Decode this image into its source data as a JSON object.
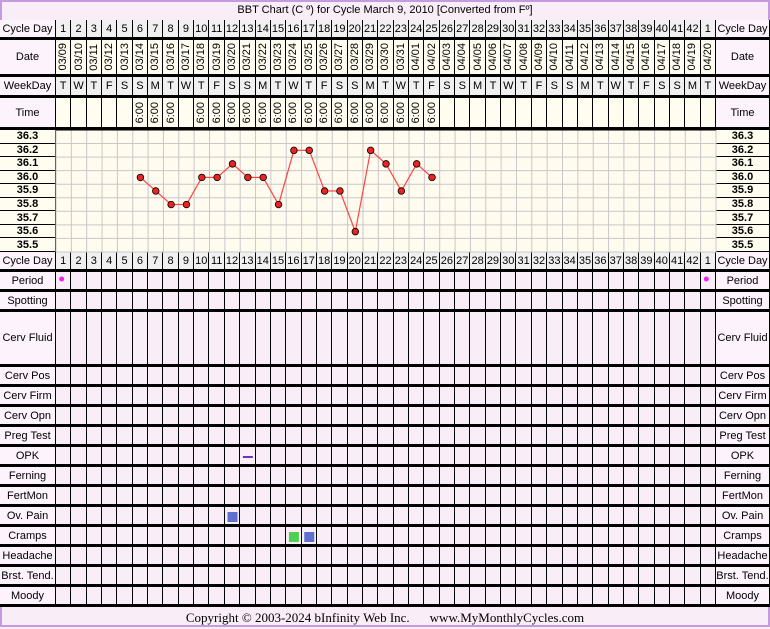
{
  "title": "BBT Chart (C º) for Cycle March 9, 2010  [Converted from Fº]",
  "labels": {
    "cycle_day": "Cycle Day",
    "date": "Date",
    "weekday": "WeekDay",
    "time": "Time"
  },
  "rows": [
    "Period",
    "Spotting",
    "Cerv Fluid",
    "Cerv Pos",
    "Cerv Firm",
    "Cerv Opn",
    "Preg Test",
    "OPK",
    "Ferning",
    "FertMon",
    "Ov. Pain",
    "Cramps",
    "Headache",
    "Brst. Tend.",
    "Moody"
  ],
  "footer": {
    "copyright": "Copyright © 2003-2024 bInfinity Web Inc.",
    "site": "www.MyMonthlyCycles.com"
  },
  "chart_data": {
    "type": "line",
    "title": "BBT Chart (C º) for Cycle March 9, 2010  [Converted from Fº]",
    "ylabel": "",
    "ylim": [
      35.5,
      36.3
    ],
    "yticks": [
      "36.3",
      "36.2",
      "36.1",
      "36.0",
      "35.9",
      "35.8",
      "35.7",
      "35.6",
      "35.5"
    ],
    "grid": true,
    "cycle_days": [
      "1",
      "2",
      "3",
      "4",
      "5",
      "6",
      "7",
      "8",
      "9",
      "10",
      "11",
      "12",
      "13",
      "14",
      "15",
      "16",
      "17",
      "18",
      "19",
      "20",
      "21",
      "22",
      "23",
      "24",
      "25",
      "26",
      "27",
      "28",
      "29",
      "30",
      "31",
      "32",
      "33",
      "34",
      "35",
      "36",
      "37",
      "38",
      "39",
      "40",
      "41",
      "42",
      "1"
    ],
    "dates": [
      "03/09",
      "03/10",
      "03/11",
      "03/12",
      "03/13",
      "03/14",
      "03/15",
      "03/16",
      "03/17",
      "03/18",
      "03/19",
      "03/20",
      "03/21",
      "03/22",
      "03/23",
      "03/24",
      "03/25",
      "03/26",
      "03/27",
      "03/28",
      "03/29",
      "03/30",
      "03/31",
      "04/01",
      "04/02",
      "04/03",
      "04/04",
      "04/05",
      "04/06",
      "04/07",
      "04/08",
      "04/09",
      "04/10",
      "04/11",
      "04/12",
      "04/13",
      "04/14",
      "04/15",
      "04/16",
      "04/17",
      "04/18",
      "04/19",
      "04/20"
    ],
    "weekdays": [
      "T",
      "W",
      "T",
      "F",
      "S",
      "S",
      "M",
      "T",
      "W",
      "T",
      "F",
      "S",
      "S",
      "M",
      "T",
      "W",
      "T",
      "F",
      "S",
      "S",
      "M",
      "T",
      "W",
      "T",
      "F",
      "S",
      "S",
      "M",
      "T",
      "W",
      "T",
      "F",
      "S",
      "S",
      "M",
      "T",
      "W",
      "T",
      "F",
      "S",
      "S",
      "M",
      "T"
    ],
    "times": [
      "",
      "",
      "",
      "",
      "",
      "6:00",
      "6:00",
      "6:00",
      "",
      "6:00",
      "6:00",
      "6:00",
      "6:00",
      "6:00",
      "6:00",
      "6:00",
      "6:00",
      "6:00",
      "6:00",
      "6:00",
      "6:00",
      "6:00",
      "6:00",
      "6:00",
      "6:00",
      "",
      "",
      "",
      "",
      "",
      "",
      "",
      "",
      "",
      "",
      "",
      "",
      "",
      "",
      "",
      "",
      "",
      ""
    ],
    "temps": [
      null,
      null,
      null,
      null,
      null,
      36.0,
      35.9,
      35.8,
      35.8,
      36.0,
      36.0,
      36.1,
      36.0,
      36.0,
      35.8,
      36.2,
      36.2,
      35.9,
      35.9,
      35.6,
      36.2,
      36.1,
      35.9,
      36.1,
      36.0,
      null,
      null,
      null,
      null,
      null,
      null,
      null,
      null,
      null,
      null,
      null,
      null,
      null,
      null,
      null,
      null,
      null,
      null
    ],
    "line_color": "#ff4444",
    "point_color": "#ee2222",
    "markers": [
      {
        "row": "Period",
        "day_index": 0,
        "type": "dot",
        "color": "#ee22ee"
      },
      {
        "row": "Period",
        "day_index": 42,
        "type": "dot",
        "color": "#ee22ee"
      },
      {
        "row": "OPK",
        "day_index": 12,
        "type": "dash",
        "color": "#7030c0"
      },
      {
        "row": "Ov. Pain",
        "day_index": 11,
        "type": "square",
        "color": "#6070d0"
      },
      {
        "row": "Cramps",
        "day_index": 15,
        "type": "square",
        "color": "#50d050"
      },
      {
        "row": "Cramps",
        "day_index": 16,
        "type": "square",
        "color": "#6070d0"
      }
    ]
  }
}
